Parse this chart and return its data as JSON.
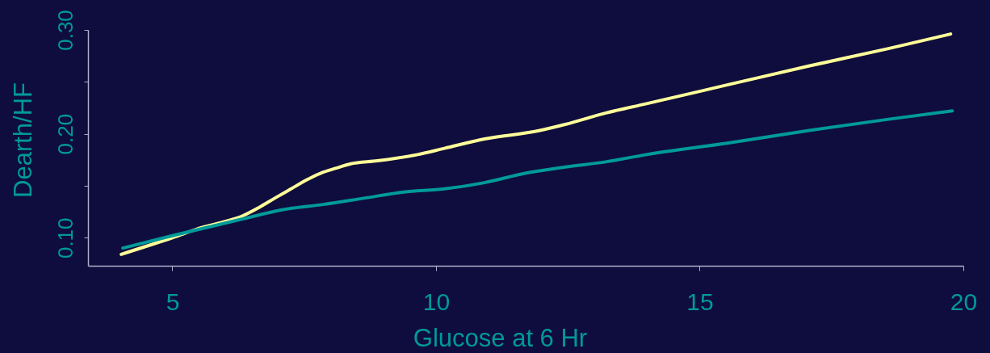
{
  "chart_data": {
    "type": "line",
    "xlabel": "Glucose at 6 Hr",
    "ylabel": "Dearth/HF",
    "xlim": [
      3.4,
      20
    ],
    "ylim": [
      0.073,
      0.3
    ],
    "xticks": [
      5,
      10,
      15,
      20
    ],
    "yticks": [
      {
        "value": 0.1,
        "label": "0.10"
      },
      {
        "value": 0.15,
        "label": null
      },
      {
        "value": 0.2,
        "label": "0.20"
      },
      {
        "value": 0.25,
        "label": null
      },
      {
        "value": 0.3,
        "label": "0.30"
      }
    ],
    "grid": false,
    "series": [
      {
        "color": "#ffff99",
        "x": [
          4.03,
          5.0,
          5.57,
          6.03,
          6.33,
          6.64,
          6.94,
          7.25,
          7.56,
          7.86,
          8.17,
          8.37,
          8.89,
          9.65,
          10.16,
          10.92,
          11.95,
          12.45,
          13.22,
          13.99,
          15.52,
          17.05,
          18.58,
          19.76
        ],
        "values": [
          0.084,
          0.1,
          0.11,
          0.116,
          0.121,
          0.129,
          0.138,
          0.147,
          0.156,
          0.163,
          0.168,
          0.171,
          0.174,
          0.18,
          0.186,
          0.195,
          0.203,
          0.209,
          0.22,
          0.229,
          0.247,
          0.265,
          0.282,
          0.296
        ]
      },
      {
        "color": "#009a9a",
        "x": [
          4.06,
          5.0,
          6.33,
          7.1,
          7.86,
          8.63,
          9.39,
          10.16,
          10.92,
          11.69,
          12.45,
          13.22,
          13.99,
          15.52,
          17.05,
          18.58,
          19.79
        ],
        "values": [
          0.09,
          0.102,
          0.118,
          0.127,
          0.132,
          0.138,
          0.144,
          0.147,
          0.153,
          0.162,
          0.168,
          0.173,
          0.18,
          0.191,
          0.203,
          0.214,
          0.222
        ]
      }
    ]
  }
}
